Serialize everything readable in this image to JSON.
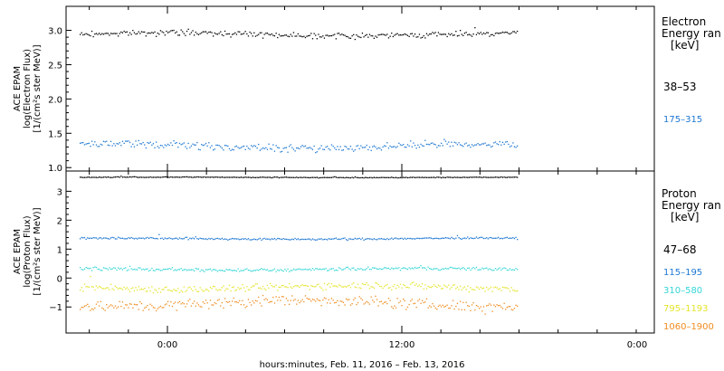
{
  "chart_data": [
    {
      "type": "scatter",
      "panel": "electron",
      "ylabel_lines": [
        "ACE EPAM",
        "log(Electron Flux)",
        "[1/(cm²s ster MeV)]"
      ],
      "ylim": [
        0.95,
        3.35
      ],
      "yticks": [
        1.0,
        1.5,
        2.0,
        2.5,
        3.0
      ],
      "ytick_labels": [
        "1.0",
        "1.5",
        "2.0",
        "2.5",
        "3.0"
      ],
      "legend_title": [
        "Electron",
        "Energy ran",
        "[keV]"
      ],
      "series": [
        {
          "name": "38–53",
          "color": "#000000",
          "approx_level": 2.95,
          "spread": 0.06
        },
        {
          "name": "175–315",
          "color": "#1e78d2",
          "approx_level": 1.32,
          "spread": 0.08
        }
      ]
    },
    {
      "type": "scatter",
      "panel": "proton",
      "ylabel_lines": [
        "ACE EPAM",
        "log(Proton Flux)",
        "[1/(cm²s ster MeV)]"
      ],
      "ylim": [
        -1.9,
        3.7
      ],
      "yticks": [
        -1,
        0,
        1,
        2,
        3
      ],
      "ytick_labels": [
        "−1",
        "0",
        "1",
        "2",
        "3"
      ],
      "legend_title": [
        "Proton",
        "Energy ran",
        "[keV]"
      ],
      "series": [
        {
          "name": "47–68",
          "color": "#000000",
          "approx_level": 3.5,
          "spread": 0.02
        },
        {
          "name": "115–195",
          "color": "#1e78d2",
          "approx_level": 1.38,
          "spread": 0.05
        },
        {
          "name": "310–580",
          "color": "#35d6d6",
          "approx_level": 0.32,
          "spread": 0.08
        },
        {
          "name": "795–1193",
          "color": "#e4e42a",
          "approx_level": -0.3,
          "spread": 0.18
        },
        {
          "name": "1060–1900",
          "color": "#f08c1e",
          "approx_level": -0.85,
          "spread": 0.28
        }
      ]
    }
  ],
  "x_axis": {
    "label": "hours:minutes, Feb. 11, 2016 – Feb. 13, 2016",
    "tick_labels": [
      "0:00",
      "12:00",
      "0:00"
    ]
  }
}
